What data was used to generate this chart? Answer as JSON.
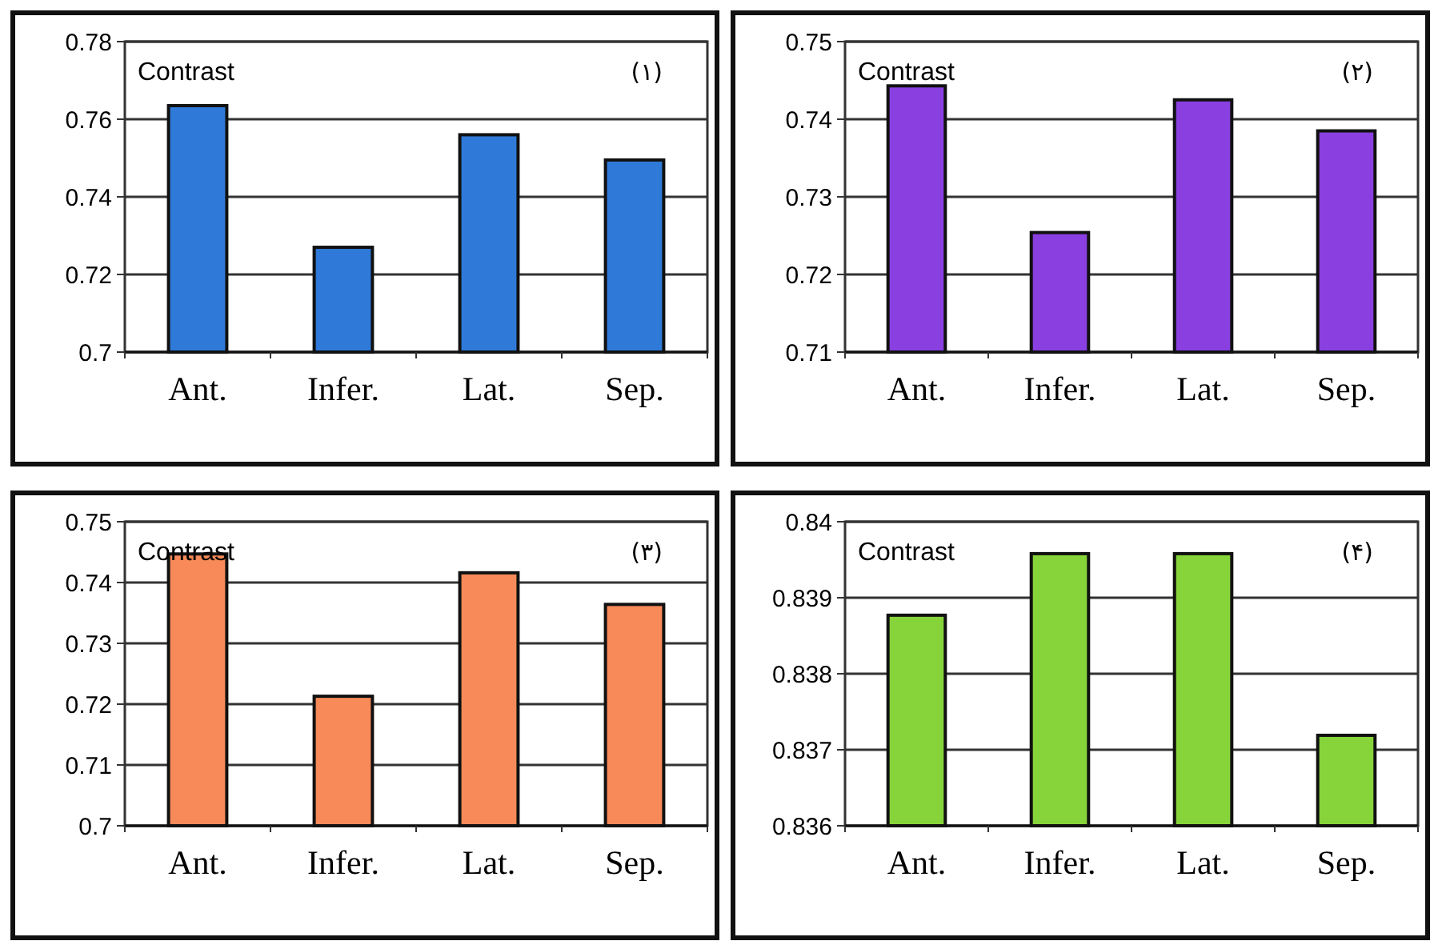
{
  "chart_data": [
    {
      "type": "bar",
      "title": "Contrast",
      "subtitle": "(۱)",
      "categories": [
        "Ant.",
        "Infer.",
        "Lat.",
        "Sep."
      ],
      "values": [
        0.7635,
        0.727,
        0.756,
        0.7495
      ],
      "color": "#2f7ad8",
      "ylim": [
        0.7,
        0.78
      ],
      "yticks": [
        0.7,
        0.72,
        0.74,
        0.76,
        0.78
      ],
      "grid": "y"
    },
    {
      "type": "bar",
      "title": "Contrast",
      "subtitle": "(۲)",
      "categories": [
        "Ant.",
        "Infer.",
        "Lat.",
        "Sep."
      ],
      "values": [
        0.7443,
        0.7254,
        0.7425,
        0.7385
      ],
      "color": "#8a3fe0",
      "ylim": [
        0.71,
        0.75
      ],
      "yticks": [
        0.71,
        0.72,
        0.73,
        0.74,
        0.75
      ],
      "grid": "y"
    },
    {
      "type": "bar",
      "title": "Contrast",
      "subtitle": "(۳)",
      "categories": [
        "Ant.",
        "Infer.",
        "Lat.",
        "Sep."
      ],
      "values": [
        0.7447,
        0.7213,
        0.7416,
        0.7364
      ],
      "color": "#f78a58",
      "ylim": [
        0.7,
        0.75
      ],
      "yticks": [
        0.7,
        0.71,
        0.72,
        0.73,
        0.74,
        0.75
      ],
      "grid": "y"
    },
    {
      "type": "bar",
      "title": "Contrast",
      "subtitle": "(۴)",
      "categories": [
        "Ant.",
        "Infer.",
        "Lat.",
        "Sep."
      ],
      "values": [
        0.83877,
        0.83958,
        0.83958,
        0.83719
      ],
      "color": "#86d43a",
      "ylim": [
        0.836,
        0.84
      ],
      "yticks": [
        0.836,
        0.837,
        0.838,
        0.839,
        0.84
      ],
      "grid": "y"
    }
  ]
}
